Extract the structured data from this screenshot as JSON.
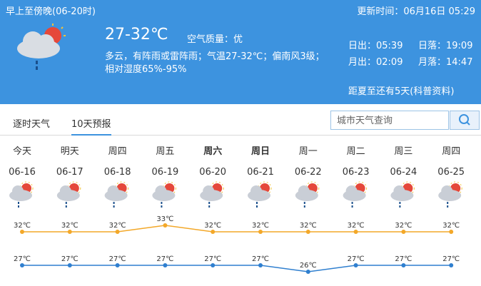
{
  "header": {
    "period": "早上至傍晚(06-20时)",
    "updated": "更新时间：06月16日 05:29",
    "temperature": "27-32℃",
    "air_quality": "空气质量：优",
    "description": "多云，有阵雨或雷阵雨；气温27-32℃；偏南风3级；",
    "humidity": "相对湿度65%-95%",
    "sunrise": "日出：05:39",
    "sunset": "日落：19:09",
    "moonrise": "月出：02:09",
    "moonset": "月落：14:47",
    "note": "距夏至还有5天(科普资料)"
  },
  "tabs": [
    "逐时天气",
    "10天预报"
  ],
  "search_placeholder": "城市天气查询",
  "days": [
    {
      "weekday": "今天",
      "date": "06-16",
      "high": {
        "value": 32,
        "label": "32℃"
      },
      "low": {
        "value": 27,
        "label": "27℃"
      }
    },
    {
      "weekday": "明天",
      "date": "06-17",
      "high": {
        "value": 32,
        "label": "32℃"
      },
      "low": {
        "value": 27,
        "label": "27℃"
      }
    },
    {
      "weekday": "周四",
      "date": "06-18",
      "high": {
        "value": 32,
        "label": "32℃"
      },
      "low": {
        "value": 27,
        "label": "27℃"
      }
    },
    {
      "weekday": "周五",
      "date": "06-19",
      "high": {
        "value": 33,
        "label": "33℃"
      },
      "low": {
        "value": 27,
        "label": "27℃"
      }
    },
    {
      "weekday": "周六",
      "date": "06-20",
      "bold": true,
      "high": {
        "value": 32,
        "label": "32℃"
      },
      "low": {
        "value": 27,
        "label": "27℃"
      }
    },
    {
      "weekday": "周日",
      "date": "06-21",
      "bold": true,
      "high": {
        "value": 32,
        "label": "32℃"
      },
      "low": {
        "value": 27,
        "label": "27℃"
      }
    },
    {
      "weekday": "周一",
      "date": "06-22",
      "high": {
        "value": 32,
        "label": "32℃"
      },
      "low": {
        "value": 26,
        "label": "26℃"
      }
    },
    {
      "weekday": "周二",
      "date": "06-23",
      "high": {
        "value": 32,
        "label": "32℃"
      },
      "low": {
        "value": 27,
        "label": "27℃"
      }
    },
    {
      "weekday": "周三",
      "date": "06-24",
      "high": {
        "value": 32,
        "label": "32℃"
      },
      "low": {
        "value": 27,
        "label": "27℃"
      }
    },
    {
      "weekday": "周四",
      "date": "06-25",
      "high": {
        "value": 32,
        "label": "32℃"
      },
      "low": {
        "value": 27,
        "label": "27℃"
      }
    }
  ]
}
